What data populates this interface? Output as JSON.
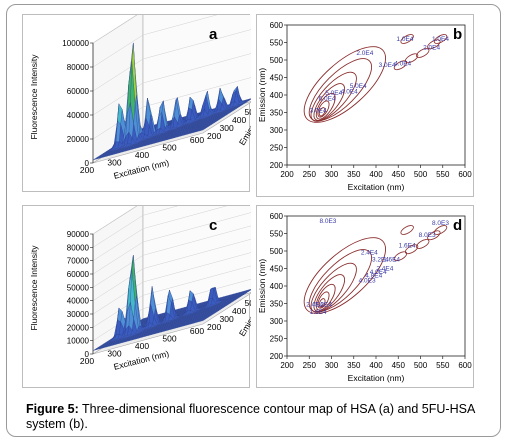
{
  "caption": {
    "label": "Figure 5:",
    "text": " Three-dimensional fluorescence contour map of HSA (a) and 5FU-HSA system (b)."
  },
  "chart_data": [
    {
      "type": "surface3d",
      "panel_label": "a",
      "xlabel": "Excitation (nm)",
      "ylabel": "Emission (nm)",
      "zlabel": "Fluorescence Intensity",
      "x_ticks": [
        "200",
        "300",
        "400",
        "500",
        "600"
      ],
      "y_ticks": [
        "200",
        "300",
        "400",
        "500",
        "600"
      ],
      "z_ticks": [
        "0",
        "20000",
        "40000",
        "60000",
        "80000",
        "100000"
      ],
      "zlim": [
        0,
        100000
      ],
      "peaks": [
        {
          "excitation": 280,
          "emission": 340,
          "intensity": 85000
        },
        {
          "excitation": 240,
          "emission": 330,
          "intensity": 42000
        },
        {
          "excitation": 320,
          "emission": 380,
          "intensity": 35000
        },
        {
          "excitation": 360,
          "emission": 400,
          "intensity": 30000
        },
        {
          "excitation": 400,
          "emission": 430,
          "intensity": 26000
        },
        {
          "excitation": 440,
          "emission": 460,
          "intensity": 24000
        },
        {
          "excitation": 480,
          "emission": 490,
          "intensity": 22000
        },
        {
          "excitation": 520,
          "emission": 520,
          "intensity": 20000
        },
        {
          "excitation": 560,
          "emission": 550,
          "intensity": 18000
        }
      ]
    },
    {
      "type": "contour",
      "panel_label": "b",
      "xlabel": "Excitation (nm)",
      "ylabel": "Emission (nm)",
      "x_ticks": [
        "200",
        "250",
        "300",
        "350",
        "400",
        "450",
        "500",
        "550",
        "600"
      ],
      "y_ticks": [
        "200",
        "250",
        "300",
        "350",
        "400",
        "450",
        "500",
        "550",
        "600"
      ],
      "xlim": [
        200,
        600
      ],
      "ylim": [
        200,
        600
      ],
      "contour_labels": [
        {
          "text": "1.0E4",
          "x": 465,
          "y": 555
        },
        {
          "text": "1.0E4",
          "x": 545,
          "y": 555
        },
        {
          "text": "2.0E4",
          "x": 375,
          "y": 515
        },
        {
          "text": "2.0E4",
          "x": 525,
          "y": 530
        },
        {
          "text": "3.0E4",
          "x": 425,
          "y": 480
        },
        {
          "text": "4.0E4",
          "x": 460,
          "y": 485
        },
        {
          "text": "5.0E4",
          "x": 360,
          "y": 420
        },
        {
          "text": "4.0E4",
          "x": 340,
          "y": 405
        },
        {
          "text": "5.0E4",
          "x": 305,
          "y": 400
        },
        {
          "text": "6.0E4",
          "x": 290,
          "y": 385
        },
        {
          "text": "3.0E4",
          "x": 270,
          "y": 350
        }
      ]
    },
    {
      "type": "surface3d",
      "panel_label": "c",
      "xlabel": "Excitation (nm)",
      "ylabel": "Emission (nm)",
      "zlabel": "Fluorescence Intensity",
      "x_ticks": [
        "200",
        "300",
        "400",
        "500",
        "600"
      ],
      "y_ticks": [
        "200",
        "300",
        "400",
        "500",
        "600"
      ],
      "z_ticks": [
        "0",
        "10000",
        "20000",
        "30000",
        "40000",
        "50000",
        "60000",
        "70000",
        "80000",
        "90000"
      ],
      "zlim": [
        0,
        90000
      ],
      "peaks": [
        {
          "excitation": 280,
          "emission": 340,
          "intensity": 60000
        },
        {
          "excitation": 240,
          "emission": 330,
          "intensity": 26000
        },
        {
          "excitation": 330,
          "emission": 390,
          "intensity": 30000
        },
        {
          "excitation": 380,
          "emission": 420,
          "intensity": 25000
        },
        {
          "excitation": 440,
          "emission": 460,
          "intensity": 19000
        },
        {
          "excitation": 500,
          "emission": 500,
          "intensity": 17000
        }
      ]
    },
    {
      "type": "contour",
      "panel_label": "d",
      "xlabel": "Excitation (nm)",
      "ylabel": "Emission (nm)",
      "x_ticks": [
        "200",
        "250",
        "300",
        "350",
        "400",
        "450",
        "500",
        "550",
        "600"
      ],
      "y_ticks": [
        "200",
        "250",
        "300",
        "350",
        "400",
        "450",
        "500",
        "550",
        "600"
      ],
      "xlim": [
        200,
        600
      ],
      "ylim": [
        200,
        600
      ],
      "contour_labels": [
        {
          "text": "8.0E3",
          "x": 292,
          "y": 580
        },
        {
          "text": "8.0E3",
          "x": 545,
          "y": 575
        },
        {
          "text": "8.0E3",
          "x": 515,
          "y": 540
        },
        {
          "text": "1.6E4",
          "x": 470,
          "y": 510
        },
        {
          "text": "2.4E4",
          "x": 385,
          "y": 490
        },
        {
          "text": "3.2E4",
          "x": 410,
          "y": 470
        },
        {
          "text": "1.6E4",
          "x": 435,
          "y": 470
        },
        {
          "text": "2.4E4",
          "x": 420,
          "y": 445
        },
        {
          "text": "4.0E4",
          "x": 405,
          "y": 435
        },
        {
          "text": "4.8E4",
          "x": 395,
          "y": 425
        },
        {
          "text": "4.0E3",
          "x": 380,
          "y": 410
        },
        {
          "text": "2.4E4",
          "x": 262,
          "y": 342
        },
        {
          "text": "3.2E4",
          "x": 282,
          "y": 342
        },
        {
          "text": "1.6E4",
          "x": 270,
          "y": 320
        }
      ]
    }
  ]
}
